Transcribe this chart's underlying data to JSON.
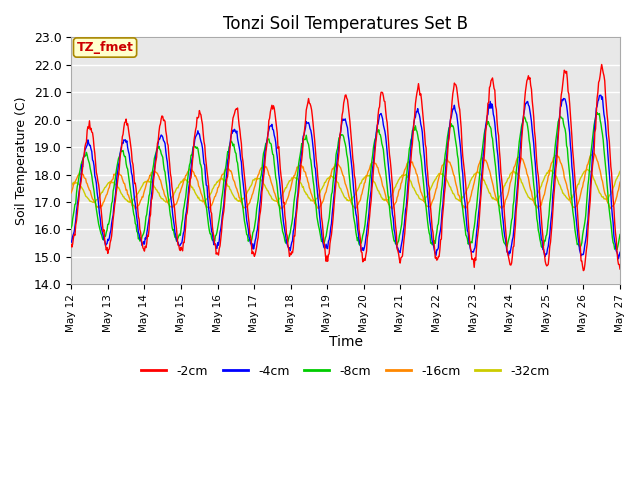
{
  "title": "Tonzi Soil Temperatures Set B",
  "xlabel": "Time",
  "ylabel": "Soil Temperature (C)",
  "ylim": [
    14.0,
    23.0
  ],
  "yticks": [
    14.0,
    15.0,
    16.0,
    17.0,
    18.0,
    19.0,
    20.0,
    21.0,
    22.0,
    23.0
  ],
  "annotation": "TZ_fmet",
  "colors": {
    "-2cm": "#ff0000",
    "-4cm": "#0000ff",
    "-8cm": "#00cc00",
    "-16cm": "#ff8800",
    "-32cm": "#cccc00"
  },
  "legend_labels": [
    "-2cm",
    "-4cm",
    "-8cm",
    "-16cm",
    "-32cm"
  ],
  "background_color": "#ffffff",
  "plot_bg_color": "#e8e8e8",
  "grid_color": "#ffffff",
  "line_width": 1.0,
  "days": [
    12,
    13,
    14,
    15,
    16,
    17,
    18,
    19,
    20,
    21,
    22,
    23,
    24,
    25,
    26,
    27
  ]
}
